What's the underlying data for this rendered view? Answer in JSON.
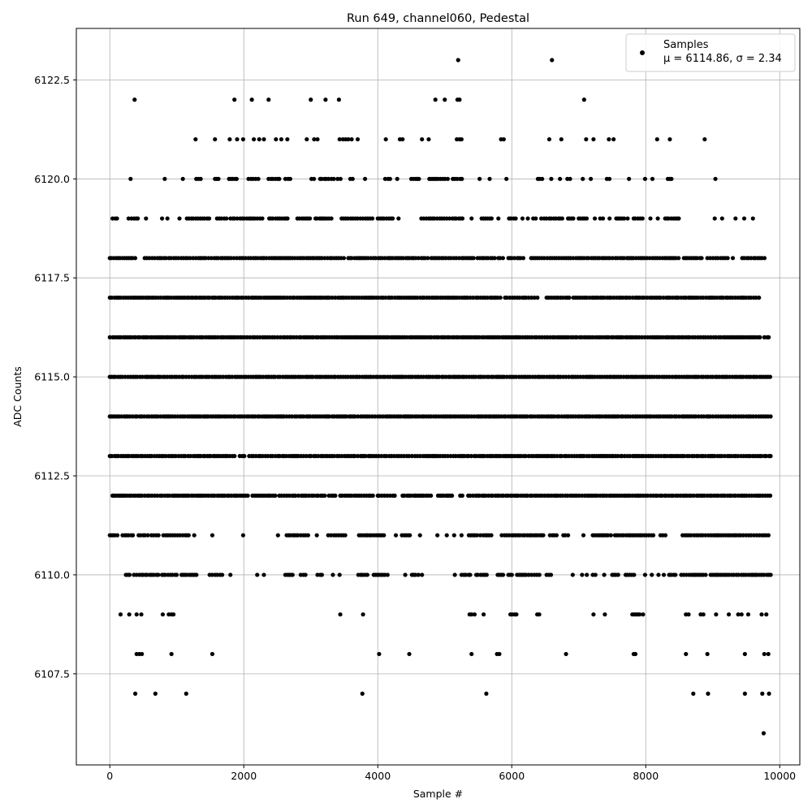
{
  "chart_data": {
    "type": "scatter",
    "title": "Run 649, channel060, Pedestal",
    "xlabel": "Sample #",
    "ylabel": "ADC Counts",
    "xlim": [
      -500,
      10300
    ],
    "ylim": [
      6105.2,
      6123.8
    ],
    "xticks": [
      0,
      2000,
      4000,
      6000,
      8000,
      10000
    ],
    "xtick_labels": [
      "0",
      "2000",
      "4000",
      "6000",
      "8000",
      "10000"
    ],
    "yticks": [
      6107.5,
      6110.0,
      6112.5,
      6115.0,
      6117.5,
      6120.0,
      6122.5
    ],
    "ytick_labels": [
      "6107.5",
      "6110.0",
      "6112.5",
      "6115.0",
      "6117.5",
      "6120.0",
      "6122.5"
    ],
    "grid": true,
    "legend_position": "top-right",
    "marker_color": "#000000",
    "series": [
      {
        "name": "Samples",
        "stat_line": "μ = 6114.86, σ = 2.34",
        "levels": [
          {
            "y": 6123,
            "x_ranges": [],
            "x_points": [
              5200,
              6600
            ]
          },
          {
            "y": 6122,
            "x_ranges": [],
            "x_points": [
              370,
              1860,
              2120,
              2370,
              3000,
              3220,
              3420,
              4860,
              5000,
              5190,
              5220,
              7080
            ]
          },
          {
            "y": 6121,
            "x_ranges": [],
            "x_points": [
              1280,
              1570,
              1790,
              1900,
              1990,
              2150,
              2230,
              2300,
              2480,
              2560,
              2650,
              2940,
              3050,
              3100,
              3430,
              3480,
              3520,
              3560,
              3610,
              3700,
              4120,
              4330,
              4370,
              4660,
              4760,
              5180,
              5220,
              5250,
              5840,
              5880,
              6560,
              6740,
              7110,
              7220,
              7450,
              7520,
              8170,
              8360,
              8880
            ]
          },
          {
            "y": 6120,
            "x_ranges": [
              [
                1290,
                1380
              ],
              [
                1570,
                1660
              ],
              [
                1780,
                1900
              ],
              [
                2070,
                2240
              ],
              [
                2370,
                2530
              ],
              [
                2620,
                2700
              ],
              [
                3010,
                3080
              ],
              [
                3140,
                3350
              ],
              [
                3400,
                3480
              ],
              [
                3590,
                3650
              ],
              [
                4110,
                4190
              ],
              [
                4500,
                4620
              ],
              [
                4770,
                5060
              ],
              [
                5120,
                5260
              ],
              [
                6390,
                6460
              ],
              [
                6830,
                6890
              ],
              [
                7420,
                7480
              ],
              [
                8330,
                8390
              ]
            ],
            "x_points": [
              310,
              820,
              1090,
              3810,
              4290,
              5520,
              5670,
              5920,
              6590,
              6720,
              7060,
              7180,
              7750,
              7990,
              8100,
              9040
            ]
          },
          {
            "y": 6119,
            "x_ranges": [
              [
                40,
                110
              ],
              [
                280,
                440
              ],
              [
                1150,
                1500
              ],
              [
                1600,
                1720
              ],
              [
                1800,
                2280
              ],
              [
                2380,
                2680
              ],
              [
                2800,
                3000
              ],
              [
                3070,
                3320
              ],
              [
                3460,
                3950
              ],
              [
                4000,
                4240
              ],
              [
                4650,
                5290
              ],
              [
                5550,
                5700
              ],
              [
                5960,
                6060
              ],
              [
                6320,
                6390
              ],
              [
                6440,
                6520
              ],
              [
                6560,
                6760
              ],
              [
                6840,
                6950
              ],
              [
                7000,
                7120
              ],
              [
                7320,
                7380
              ],
              [
                7560,
                7680
              ],
              [
                7820,
                7960
              ],
              [
                8290,
                8510
              ]
            ],
            "x_points": [
              540,
              780,
              860,
              1040,
              1740,
              4310,
              5400,
              5800,
              6160,
              6240,
              7240,
              7460,
              7730,
              8070,
              8180,
              9030,
              9140,
              9340,
              9470,
              9600
            ]
          },
          {
            "y": 6118,
            "x_ranges": [
              [
                0,
                400
              ],
              [
                520,
                3520
              ],
              [
                3560,
                4760
              ],
              [
                4800,
                5440
              ],
              [
                5490,
                5760
              ],
              [
                5800,
                5870
              ],
              [
                5950,
                6190
              ],
              [
                6290,
                8500
              ],
              [
                8570,
                8860
              ],
              [
                8920,
                9240
              ],
              [
                9440,
                9780
              ]
            ],
            "x_points": [
              9300
            ]
          },
          {
            "y": 6117,
            "x_ranges": [
              [
                0,
                5870
              ],
              [
                5900,
                6420
              ],
              [
                6520,
                6880
              ],
              [
                6920,
                8500
              ],
              [
                8530,
                9700
              ]
            ],
            "x_points": []
          },
          {
            "y": 6116,
            "x_ranges": [
              [
                0,
                9720
              ],
              [
                9770,
                9860
              ]
            ],
            "x_points": []
          },
          {
            "y": 6115,
            "x_ranges": [
              [
                0,
                9870
              ]
            ],
            "x_points": []
          },
          {
            "y": 6114,
            "x_ranges": [
              [
                0,
                9870
              ]
            ],
            "x_points": []
          },
          {
            "y": 6113,
            "x_ranges": [
              [
                0,
                1880
              ],
              [
                1940,
                2030
              ],
              [
                2080,
                9870
              ]
            ],
            "x_points": []
          },
          {
            "y": 6112,
            "x_ranges": [
              [
                40,
                1880
              ],
              [
                1900,
                2060
              ],
              [
                2130,
                2490
              ],
              [
                2530,
                2830
              ],
              [
                2860,
                3230
              ],
              [
                3270,
                3390
              ],
              [
                3440,
                3960
              ],
              [
                4000,
                4280
              ],
              [
                4370,
                4810
              ],
              [
                4900,
                5150
              ],
              [
                5230,
                5280
              ],
              [
                5350,
                9870
              ]
            ],
            "x_points": [
              4560,
              5040
            ]
          },
          {
            "y": 6111,
            "x_ranges": [
              [
                0,
                140
              ],
              [
                190,
                370
              ],
              [
                430,
                580
              ],
              [
                620,
                750
              ],
              [
                800,
                1200
              ],
              [
                2640,
                2970
              ],
              [
                3260,
                3530
              ],
              [
                3720,
                4110
              ],
              [
                4360,
                4480
              ],
              [
                5360,
                5500
              ],
              [
                5530,
                5730
              ],
              [
                5850,
                6060
              ],
              [
                6090,
                6480
              ],
              [
                6570,
                6700
              ],
              [
                6770,
                6880
              ],
              [
                7210,
                7480
              ],
              [
                7540,
                8150
              ],
              [
                8220,
                8300
              ],
              [
                8550,
                9870
              ]
            ],
            "x_points": [
              1260,
              1530,
              1990,
              2510,
              3090,
              4270,
              4630,
              4890,
              5030,
              5140,
              5250,
              7070
            ]
          },
          {
            "y": 6110,
            "x_ranges": [
              [
                240,
                320
              ],
              [
                360,
                730
              ],
              [
                780,
                1010
              ],
              [
                1070,
                1320
              ],
              [
                1490,
                1680
              ],
              [
                2620,
                2760
              ],
              [
                2850,
                2960
              ],
              [
                3100,
                3200
              ],
              [
                3710,
                3860
              ],
              [
                3940,
                4170
              ],
              [
                4510,
                4620
              ],
              [
                5250,
                5400
              ],
              [
                5470,
                5640
              ],
              [
                5790,
                5890
              ],
              [
                5950,
                6030
              ],
              [
                6080,
                6440
              ],
              [
                6520,
                6590
              ],
              [
                7210,
                7270
              ],
              [
                7500,
                7600
              ],
              [
                7700,
                7840
              ],
              [
                8350,
                8460
              ],
              [
                8530,
                8770
              ],
              [
                8800,
                8900
              ],
              [
                8970,
                9870
              ]
            ],
            "x_points": [
              1800,
              2200,
              2300,
              3330,
              3430,
              4410,
              4660,
              5150,
              6910,
              7050,
              7120,
              7380,
              7990,
              8090,
              8190,
              8270
            ]
          },
          {
            "y": 6109,
            "x_ranges": [
              [
                5370,
                5450
              ],
              [
                5980,
                6080
              ],
              [
                6380,
                6410
              ],
              [
                7800,
                7910
              ]
            ],
            "x_points": [
              160,
              290,
              400,
              470,
              790,
              880,
              920,
              950,
              3440,
              3780,
              5580,
              7220,
              7390,
              7960,
              8600,
              8640,
              8820,
              8860,
              9050,
              9240,
              9380,
              9430,
              9530,
              9730,
              9800
            ]
          },
          {
            "y": 6108,
            "x_ranges": [
              [
                400,
                510
              ],
              [
                5780,
                5830
              ],
              [
                7820,
                7860
              ]
            ],
            "x_points": [
              920,
              1530,
              4020,
              4470,
              5400,
              6810,
              8600,
              8920,
              9480,
              9770,
              9830
            ]
          },
          {
            "y": 6107,
            "x_ranges": [],
            "x_points": [
              380,
              680,
              1140,
              3770,
              5620,
              8710,
              8930,
              9480,
              9740,
              9840
            ]
          },
          {
            "y": 6106,
            "x_ranges": [],
            "x_points": [
              9760
            ]
          }
        ]
      }
    ]
  }
}
